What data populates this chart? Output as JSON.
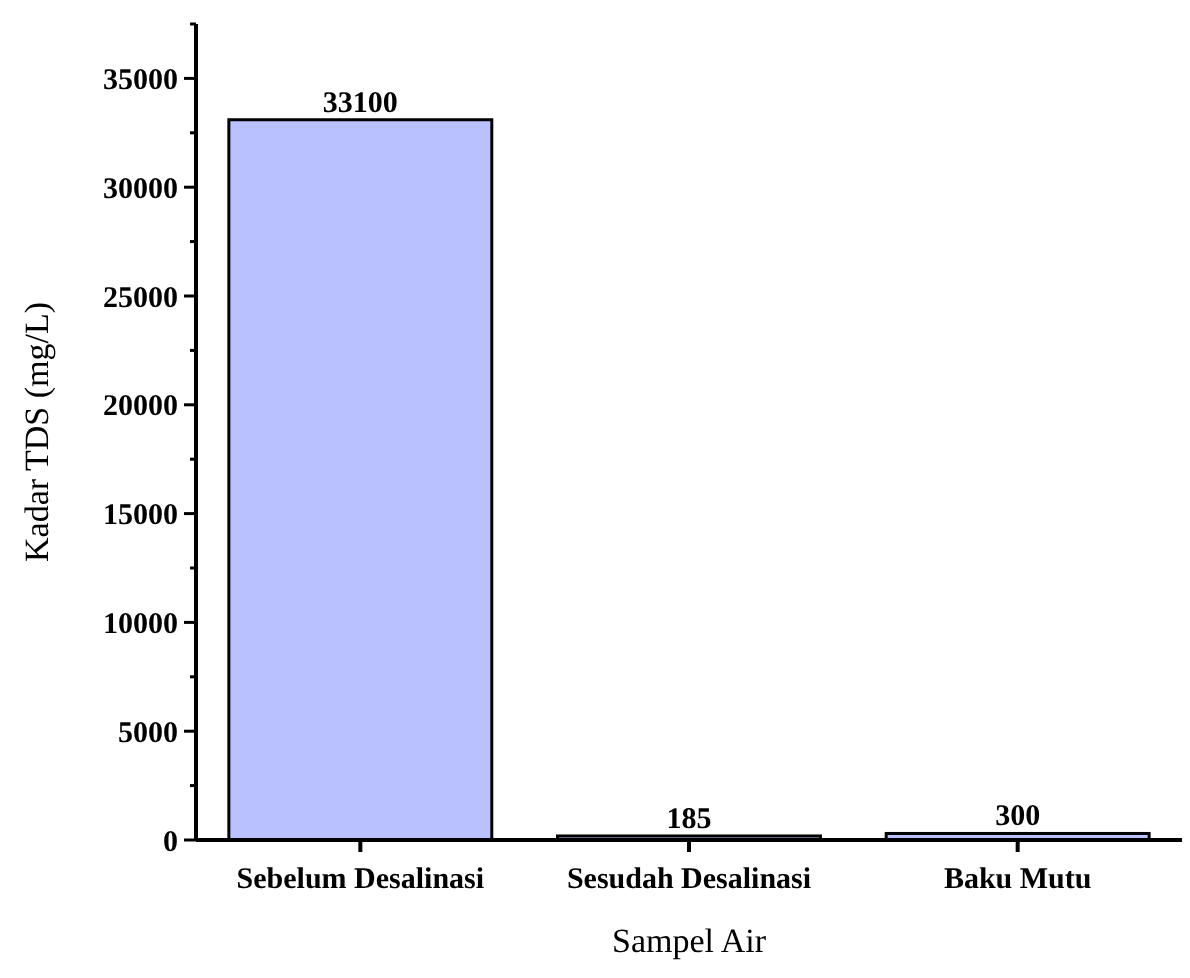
{
  "chart_data": {
    "type": "bar",
    "xlabel": "Sampel Air",
    "ylabel": "Kadar TDS (mg/L)",
    "categories": [
      "Sebelum Desalinasi",
      "Sesudah Desalinasi",
      "Baku Mutu"
    ],
    "values": [
      33100,
      185,
      300
    ],
    "color": "#b9c1ff",
    "data_labels": true,
    "ylim": [
      0,
      37500
    ],
    "yticks": [
      0,
      {
        "value": 2500,
        "label": null
      },
      5000,
      {
        "value": 7500,
        "label": null
      },
      10000,
      {
        "value": 12500,
        "label": null
      },
      15000,
      {
        "value": 17500,
        "label": null
      },
      20000,
      {
        "value": 22500,
        "label": null
      },
      25000,
      {
        "value": 27500,
        "label": null
      },
      30000,
      {
        "value": 32500,
        "label": null
      },
      35000,
      {
        "value": 37500,
        "label": null
      }
    ],
    "grid": false
  }
}
